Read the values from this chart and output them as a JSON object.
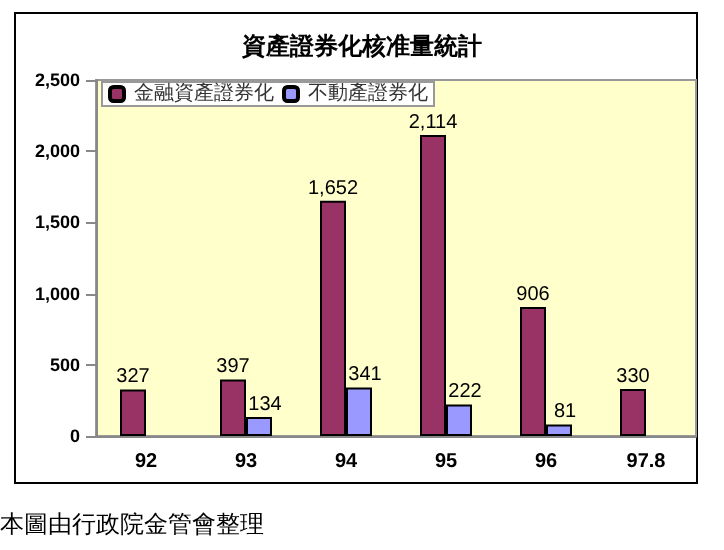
{
  "chart_data": {
    "type": "bar",
    "title": "資產證券化核准量統計",
    "categories": [
      "92",
      "93",
      "94",
      "95",
      "96",
      "97.8"
    ],
    "series": [
      {
        "name": "金融資產證券化",
        "color": "#993366",
        "values": [
          327,
          397,
          1652,
          2114,
          906,
          330
        ],
        "value_labels": [
          "327",
          "397",
          "1,652",
          "2,114",
          "906",
          "330"
        ]
      },
      {
        "name": "不動產證券化",
        "color": "#9999ff",
        "values": [
          null,
          134,
          341,
          222,
          81,
          null
        ],
        "value_labels": [
          null,
          "134",
          "341",
          "222",
          "81",
          null
        ]
      }
    ],
    "ylim": [
      0,
      2500
    ],
    "yticks": [
      0,
      {
        "value": 500,
        "label": "500"
      },
      {
        "value": 1000,
        "label": "1,000"
      },
      {
        "value": 1500,
        "label": "1,500"
      },
      {
        "value": 2000,
        "label": "2,000"
      },
      {
        "value": 2500,
        "label": "2,500"
      }
    ],
    "grid": false,
    "legend": "top left",
    "annotations": [
      "本圖由行政院金管會整理"
    ]
  }
}
